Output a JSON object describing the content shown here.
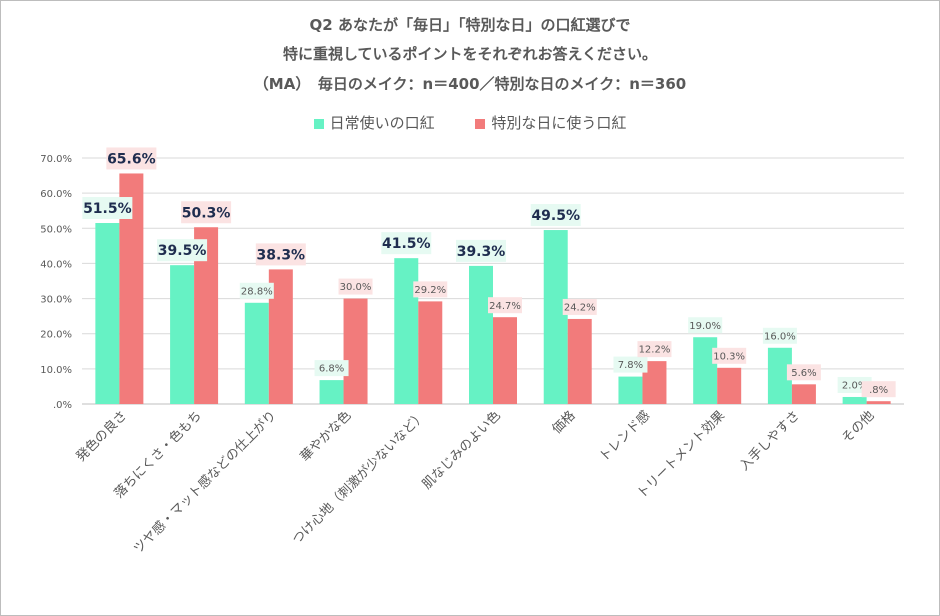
{
  "title_lines": [
    "Q2 あなたが「毎日」「特別な日」の口紅選びで",
    "特に重視しているポイントをそれぞれお答えください。",
    "（MA）　毎日のメイク：n＝400／特別な日のメイク：n＝360"
  ],
  "colors": {
    "series1": "#66f2c4",
    "series2": "#f27b7b",
    "label_bg1": "#e6faf2",
    "label_bg2": "#fbe3e3",
    "grid": "#d9d9d9",
    "text": "#595959",
    "value_text": "#1f2d4f"
  },
  "chart_data": {
    "type": "bar",
    "categories": [
      "発色の良さ",
      "落ちにくさ・色もち",
      "ツヤ感・マット感などの仕上がり",
      "華やかな色",
      "つけ心地（刺激が少ないなど）",
      "肌なじみのよい色",
      "価格",
      "トレンド感",
      "トリートメント効果",
      "入手しやすさ",
      "その他"
    ],
    "series": [
      {
        "name": "日常使いの口紅",
        "values": [
          51.5,
          39.5,
          28.8,
          6.8,
          41.5,
          39.3,
          49.5,
          7.8,
          19.0,
          16.0,
          2.0
        ],
        "labels": [
          "51.5%",
          "39.5%",
          "28.8%",
          "6.8%",
          "41.5%",
          "39.3%",
          "49.5%",
          "7.8%",
          "19.0%",
          "16.0%",
          "2.0%"
        ]
      },
      {
        "name": "特別な日に使う口紅",
        "values": [
          65.6,
          50.3,
          38.3,
          30.0,
          29.2,
          24.7,
          24.2,
          12.2,
          10.3,
          5.6,
          0.8
        ],
        "labels": [
          "65.6%",
          "50.3%",
          "38.3%",
          "30.0%",
          "29.2%",
          "24.7%",
          "24.2%",
          "12.2%",
          "10.3%",
          "5.6%",
          ".8%"
        ]
      }
    ],
    "ylim": [
      0,
      70
    ],
    "yticks": [
      ".0%",
      "10.0%",
      "20.0%",
      "30.0%",
      "40.0%",
      "50.0%",
      "60.0%",
      "70.0%"
    ],
    "grid": true,
    "legend": "top"
  }
}
